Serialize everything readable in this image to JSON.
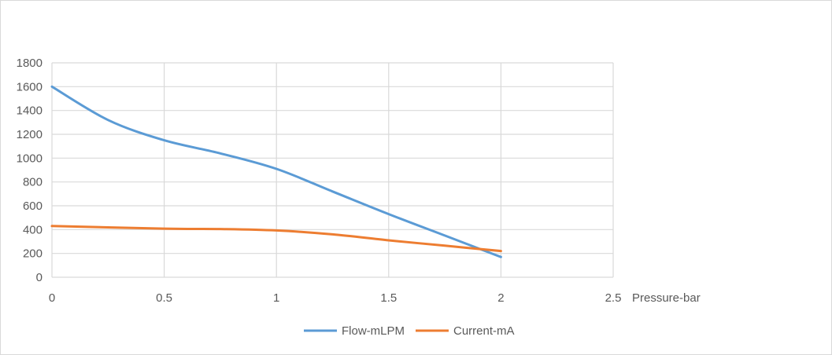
{
  "chart_data": {
    "type": "line",
    "title": "",
    "xlabel": "Pressure-bar",
    "ylabel": "",
    "xlim": [
      0,
      2.5
    ],
    "ylim": [
      0,
      1800
    ],
    "xticks": [
      0,
      0.5,
      1,
      1.5,
      2,
      2.5
    ],
    "xtick_labels": [
      "0",
      "0.5",
      "1",
      "1.5",
      "2",
      "2.5"
    ],
    "yticks": [
      0,
      200,
      400,
      600,
      800,
      1000,
      1200,
      1400,
      1600,
      1800
    ],
    "ytick_labels": [
      "0",
      "200",
      "400",
      "600",
      "800",
      "1000",
      "1200",
      "1400",
      "1600",
      "1800"
    ],
    "grid": true,
    "legend_position": "bottom",
    "smooth": true,
    "series": [
      {
        "name": "Flow-mLPM",
        "color": "#5b9bd5",
        "x": [
          0,
          0.25,
          0.5,
          0.75,
          1,
          1.25,
          1.5,
          1.75,
          2
        ],
        "y": [
          1600,
          1320,
          1150,
          1040,
          910,
          720,
          530,
          350,
          170
        ]
      },
      {
        "name": "Current-mA",
        "color": "#ed7d31",
        "x": [
          0,
          0.5,
          0.75,
          1,
          1.25,
          1.5,
          1.75,
          2
        ],
        "y": [
          430,
          408,
          405,
          393,
          360,
          310,
          265,
          220
        ]
      }
    ]
  }
}
